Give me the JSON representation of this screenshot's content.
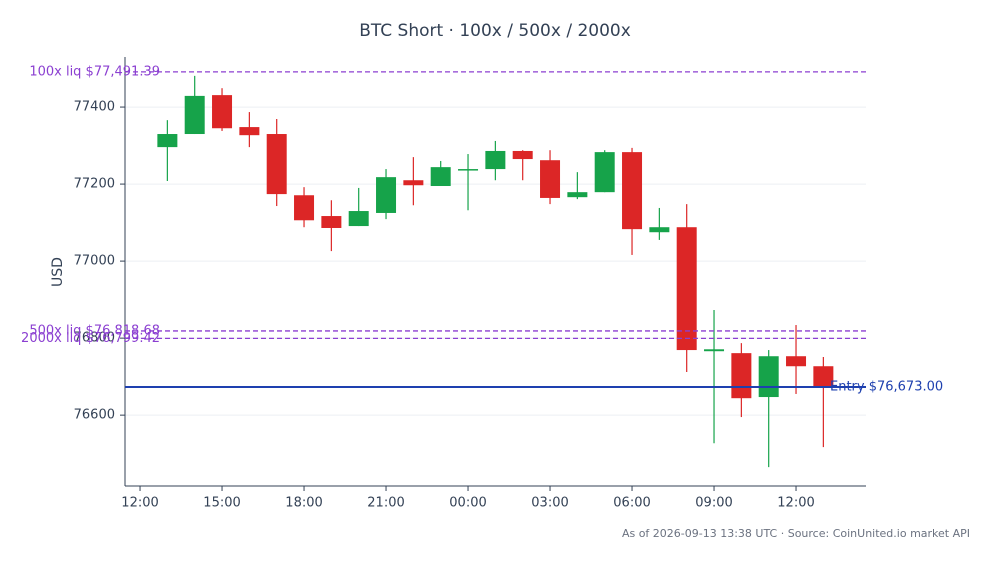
{
  "chart_data": {
    "type": "candlestick",
    "title": "BTC Short · 100x / 500x / 2000x",
    "y_label": "USD",
    "footnote": "As of 2026-09-13 13:38 UTC · Source: CoinUnited.io market API",
    "x": [
      13,
      14,
      15,
      16,
      17,
      18,
      19,
      20,
      21,
      22,
      23,
      24,
      25,
      26,
      27,
      28,
      29,
      30,
      31,
      32,
      33,
      34,
      35,
      36,
      37
    ],
    "open": [
      77296,
      77330,
      77431,
      77348,
      77330,
      77171,
      77117,
      77091,
      77125,
      77210,
      77195,
      77236,
      77239,
      77286,
      77262,
      77166,
      77179,
      77283,
      77075,
      77088,
      76766,
      76761,
      76647,
      76753,
      76727
    ],
    "high": [
      77366,
      77481,
      77449,
      77387,
      77369,
      77192,
      77158,
      77190,
      77239,
      77270,
      77260,
      77278,
      77312,
      77288,
      77288,
      77231,
      77288,
      77294,
      77138,
      77148,
      76873,
      76787,
      76769,
      76834,
      76751
    ],
    "low": [
      77208,
      77330,
      77338,
      77296,
      77143,
      77088,
      77026,
      77091,
      77109,
      77145,
      77195,
      77132,
      77210,
      77210,
      77148,
      77161,
      77179,
      77016,
      77055,
      76712,
      76527,
      76595,
      76465,
      76655,
      76517
    ],
    "close": [
      77330,
      77429,
      77345,
      77327,
      77174,
      77106,
      77086,
      77130,
      77218,
      77197,
      77244,
      77239,
      77286,
      77265,
      77164,
      77179,
      77283,
      77083,
      77088,
      76769,
      76771,
      76644,
      76753,
      76727,
      76675
    ],
    "up_color": "#16a34a",
    "down_color": "#dc2626",
    "xlim": [
      11.45,
      38.56
    ],
    "xticks": [
      {
        "value": 12,
        "label": "12:00"
      },
      {
        "value": 15,
        "label": "15:00"
      },
      {
        "value": 18,
        "label": "18:00"
      },
      {
        "value": 21,
        "label": "21:00"
      },
      {
        "value": 24,
        "label": "00:00"
      },
      {
        "value": 27,
        "label": "03:00"
      },
      {
        "value": 30,
        "label": "06:00"
      },
      {
        "value": 33,
        "label": "09:00"
      },
      {
        "value": 36,
        "label": "12:00"
      }
    ],
    "ylim": [
      76416,
      77530
    ],
    "yticks": [
      76600,
      76800,
      77000,
      77200,
      77400
    ],
    "grid": true,
    "levels": [
      {
        "label": "100x liq $77,491.39",
        "value": 77491.39,
        "color": "#8b3fd1",
        "dashed": true,
        "label_side": "left"
      },
      {
        "label": "500x liq $76,818.68",
        "value": 76818.68,
        "color": "#8b3fd1",
        "dashed": true,
        "label_side": "left"
      },
      {
        "label": "2000x liq $76,799.42",
        "value": 76799.42,
        "color": "#8b3fd1",
        "dashed": true,
        "label_side": "left"
      },
      {
        "label": "Entry $76,673.00",
        "value": 76673.0,
        "color": "#1e40af",
        "dashed": false,
        "label_side": "right"
      }
    ]
  }
}
